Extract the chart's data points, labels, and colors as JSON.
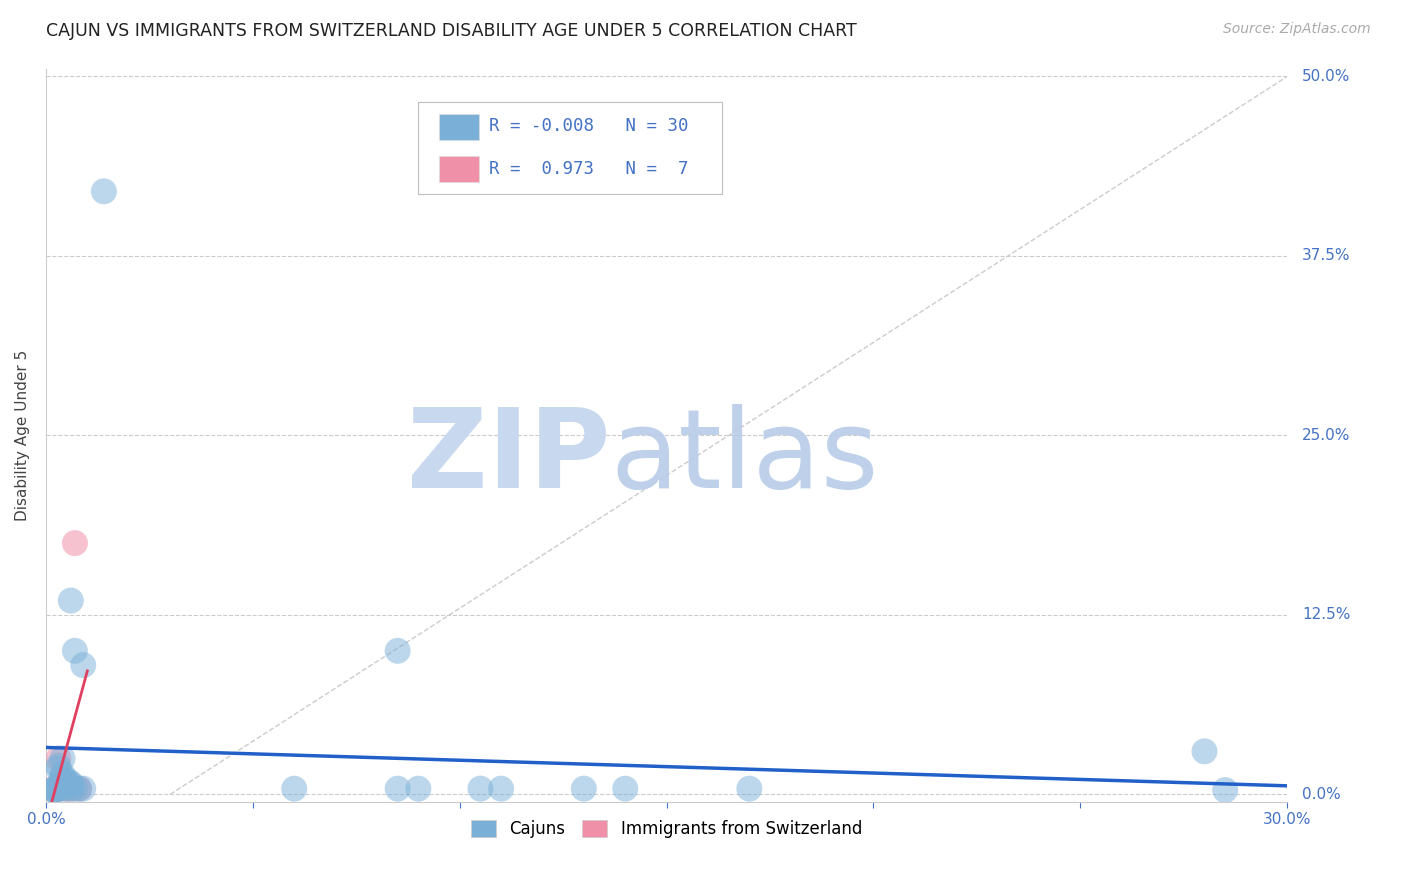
{
  "title": "CAJUN VS IMMIGRANTS FROM SWITZERLAND DISABILITY AGE UNDER 5 CORRELATION CHART",
  "source": "Source: ZipAtlas.com",
  "ylabel": "Disability Age Under 5",
  "xlim": [
    0.0,
    0.3
  ],
  "ylim": [
    -0.005,
    0.505
  ],
  "xtick_positions": [
    0.0,
    0.05,
    0.1,
    0.15,
    0.2,
    0.25,
    0.3
  ],
  "xtick_labels": [
    "0.0%",
    "",
    "",
    "",
    "",
    "",
    "30.0%"
  ],
  "ytick_positions": [
    0.0,
    0.125,
    0.25,
    0.375,
    0.5
  ],
  "ytick_labels_right": [
    "0.0%",
    "12.5%",
    "25.0%",
    "37.5%",
    "50.0%"
  ],
  "cajun_points": [
    [
      0.014,
      0.42
    ],
    [
      0.006,
      0.135
    ],
    [
      0.007,
      0.1
    ],
    [
      0.009,
      0.09
    ],
    [
      0.004,
      0.025
    ],
    [
      0.003,
      0.02
    ],
    [
      0.003,
      0.018
    ],
    [
      0.004,
      0.014
    ],
    [
      0.004,
      0.012
    ],
    [
      0.004,
      0.01
    ],
    [
      0.005,
      0.01
    ],
    [
      0.005,
      0.008
    ],
    [
      0.006,
      0.008
    ],
    [
      0.006,
      0.007
    ],
    [
      0.003,
      0.006
    ],
    [
      0.003,
      0.004
    ],
    [
      0.003,
      0.004
    ],
    [
      0.004,
      0.004
    ],
    [
      0.005,
      0.004
    ],
    [
      0.006,
      0.004
    ],
    [
      0.007,
      0.004
    ],
    [
      0.008,
      0.004
    ],
    [
      0.009,
      0.004
    ],
    [
      0.002,
      0.004
    ],
    [
      0.002,
      0.003
    ],
    [
      0.002,
      0.003
    ],
    [
      0.002,
      0.003
    ],
    [
      0.06,
      0.004
    ],
    [
      0.085,
      0.1
    ],
    [
      0.085,
      0.004
    ],
    [
      0.09,
      0.004
    ],
    [
      0.105,
      0.004
    ],
    [
      0.11,
      0.004
    ],
    [
      0.13,
      0.004
    ],
    [
      0.14,
      0.004
    ],
    [
      0.17,
      0.004
    ],
    [
      0.28,
      0.03
    ],
    [
      0.285,
      0.003
    ]
  ],
  "swiss_points": [
    [
      0.002,
      0.004
    ],
    [
      0.003,
      0.004
    ],
    [
      0.003,
      0.025
    ],
    [
      0.005,
      0.004
    ],
    [
      0.006,
      0.004
    ],
    [
      0.007,
      0.175
    ],
    [
      0.008,
      0.004
    ]
  ],
  "cajun_line_color": "#2060c8",
  "swiss_line_color": "#e04060",
  "scatter_cajun_color": "#7ab0d8",
  "scatter_swiss_color": "#f090a8",
  "background_color": "#ffffff",
  "grid_color": "#cccccc",
  "title_color": "#222222",
  "axis_label_color": "#4472c4",
  "diagonal_line_color": "#cccccc",
  "diagonal_pink_color": "#e8b0b0",
  "legend_labels": [
    "Cajuns",
    "Immigrants from Switzerland"
  ],
  "watermark_zip_color": "#c8d8ef",
  "watermark_atlas_color": "#b8cce8"
}
